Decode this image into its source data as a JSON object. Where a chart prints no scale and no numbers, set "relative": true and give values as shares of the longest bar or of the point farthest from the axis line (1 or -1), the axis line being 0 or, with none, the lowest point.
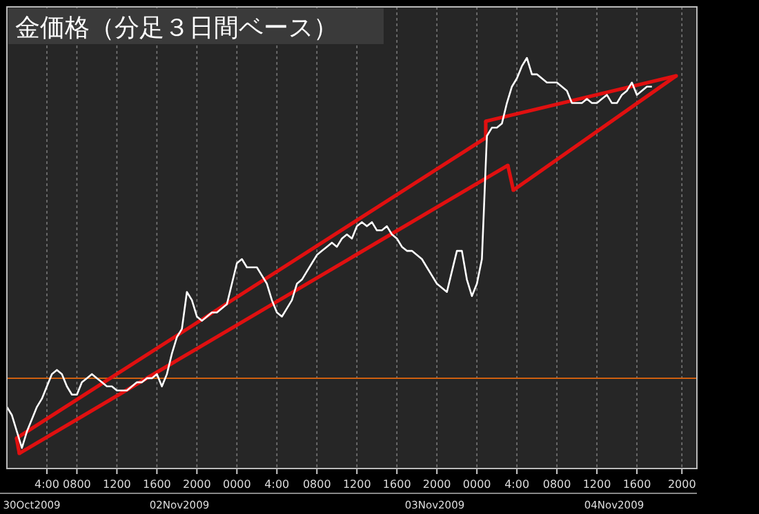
{
  "chart_data": {
    "type": "line",
    "title": "金価格（分足３日間ベース）",
    "relative": true,
    "grid": "x",
    "marker": "none",
    "line_style": "solid",
    "categories": [
      null,
      null,
      null,
      null,
      null,
      null,
      null,
      null,
      "4:00",
      null,
      null,
      null,
      null,
      null,
      "0800",
      null,
      null,
      null,
      null,
      null,
      null,
      null,
      "1200",
      null,
      null,
      null,
      null,
      null,
      null,
      null,
      "1600",
      null,
      null,
      null,
      null,
      null,
      null,
      null,
      "2000",
      null,
      null,
      null,
      null,
      null,
      null,
      null,
      "0000",
      null,
      null,
      null,
      null,
      null,
      null,
      null,
      "4:00",
      null,
      null,
      null,
      null,
      null,
      null,
      null,
      "0800",
      null,
      null,
      null,
      null,
      null,
      null,
      null,
      "1200",
      null,
      null,
      null,
      null,
      null,
      null,
      null,
      "1600",
      null,
      null,
      null,
      null,
      null,
      null,
      null,
      "2000",
      null,
      null,
      null,
      null,
      null,
      null,
      null,
      "0000",
      null,
      null,
      null,
      null,
      null,
      null,
      null,
      "4:00",
      null,
      null,
      null,
      null,
      null,
      null,
      null,
      "0800",
      null,
      null,
      null,
      null,
      null,
      null,
      null,
      "1200",
      null,
      null,
      null,
      null,
      null,
      null,
      null,
      "1600",
      null,
      null,
      null,
      null,
      null,
      null,
      null,
      null,
      "2000",
      null,
      null,
      null
    ],
    "annotations": [
      "30Oct2009",
      "02Nov2009",
      "03Nov2009",
      "04Nov2009"
    ],
    "ref_lines": [
      {
        "axis": "y",
        "value": 0.22,
        "label": null,
        "color": "#d06010"
      }
    ],
    "series": [
      {
        "color": "#ffffff",
        "values": [
          0.15,
          0.13,
          0.09,
          0.05,
          0.09,
          0.12,
          0.15,
          0.17,
          0.2,
          0.23,
          0.24,
          0.23,
          0.2,
          0.18,
          0.18,
          0.21,
          0.22,
          0.23,
          0.22,
          0.21,
          0.2,
          0.2,
          0.19,
          0.19,
          0.19,
          0.2,
          0.21,
          0.21,
          0.22,
          0.22,
          0.23,
          0.2,
          0.23,
          0.28,
          0.32,
          0.34,
          0.43,
          0.41,
          0.37,
          0.36,
          0.37,
          0.38,
          0.38,
          0.39,
          0.4,
          0.45,
          0.5,
          0.51,
          0.49,
          0.49,
          0.49,
          0.47,
          0.45,
          0.41,
          0.38,
          0.37,
          0.39,
          0.41,
          0.45,
          0.46,
          0.48,
          0.5,
          0.52,
          0.53,
          0.54,
          0.55,
          0.54,
          0.56,
          0.57,
          0.56,
          0.59,
          0.6,
          0.59,
          0.6,
          0.58,
          0.58,
          0.59,
          0.57,
          0.56,
          0.54,
          0.53,
          0.53,
          0.52,
          0.51,
          0.49,
          0.47,
          0.45,
          0.44,
          0.43,
          0.48,
          0.53,
          0.53,
          0.46,
          0.42,
          0.45,
          0.51,
          0.81,
          0.83,
          0.83,
          0.84,
          0.89,
          0.93,
          0.95,
          0.98,
          1,
          0.96,
          0.96,
          0.95,
          0.94,
          0.94,
          0.94,
          0.93,
          0.92,
          0.89,
          0.89,
          0.89,
          0.9,
          0.89,
          0.89,
          0.9,
          0.91,
          0.89,
          0.89,
          0.91,
          0.92,
          0.94,
          0.91,
          0.92,
          0.93,
          0.93,
          null,
          null,
          null,
          null,
          null,
          null,
          null,
          null,
          null
        ]
      }
    ]
  }
}
